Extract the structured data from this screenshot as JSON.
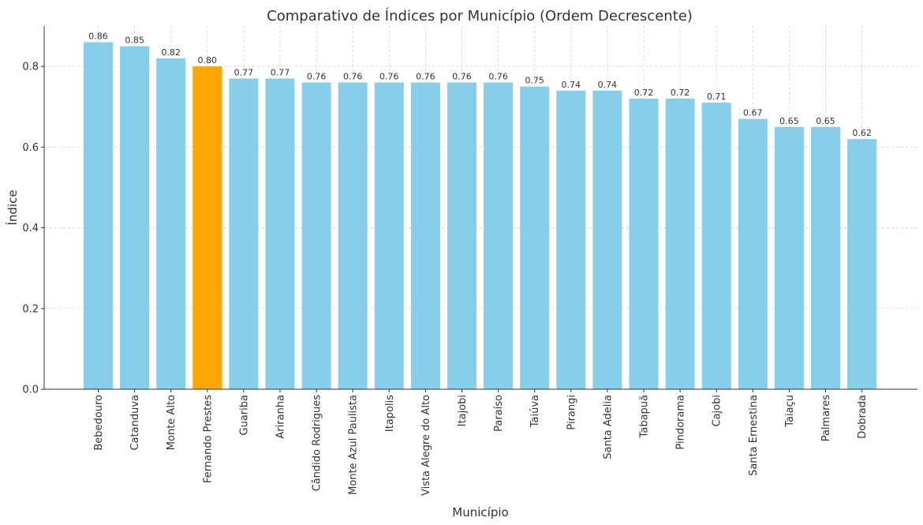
{
  "chart_data": {
    "type": "bar",
    "title": "Comparativo de Índices por Município (Ordem Decrescente)",
    "xlabel": "Município",
    "ylabel": "Índice",
    "ylim": [
      0,
      0.9
    ],
    "yticks": [
      "0.0",
      "0.2",
      "0.4",
      "0.6",
      "0.8"
    ],
    "grid": true,
    "categories": [
      "Bebedouro",
      "Catanduva",
      "Monte Alto",
      "Fernando Prestes",
      "Guariba",
      "Ariranha",
      "Cândido Rodrigues",
      "Monte Azul Paulista",
      "Itapolis",
      "Vista Alegre do Alto",
      "Itajobi",
      "Paraíso",
      "Taiúva",
      "Pirangi",
      "Santa Adelia",
      "Tabapuã",
      "Pindorama",
      "Cajobi",
      "Santa Ernestina",
      "Taiaçu",
      "Palmares",
      "Dobrada"
    ],
    "values": [
      0.86,
      0.85,
      0.82,
      0.8,
      0.77,
      0.77,
      0.76,
      0.76,
      0.76,
      0.76,
      0.76,
      0.76,
      0.75,
      0.74,
      0.74,
      0.72,
      0.72,
      0.71,
      0.67,
      0.65,
      0.65,
      0.62
    ],
    "value_labels": [
      "0.86",
      "0.85",
      "0.82",
      "0.80",
      "0.77",
      "0.77",
      "0.76",
      "0.76",
      "0.76",
      "0.76",
      "0.76",
      "0.76",
      "0.75",
      "0.74",
      "0.74",
      "0.72",
      "0.72",
      "0.71",
      "0.67",
      "0.65",
      "0.65",
      "0.62"
    ],
    "highlight_category": "Fernando Prestes",
    "colors": {
      "bar": "#87CEEB",
      "highlight": "#FFA500"
    }
  }
}
